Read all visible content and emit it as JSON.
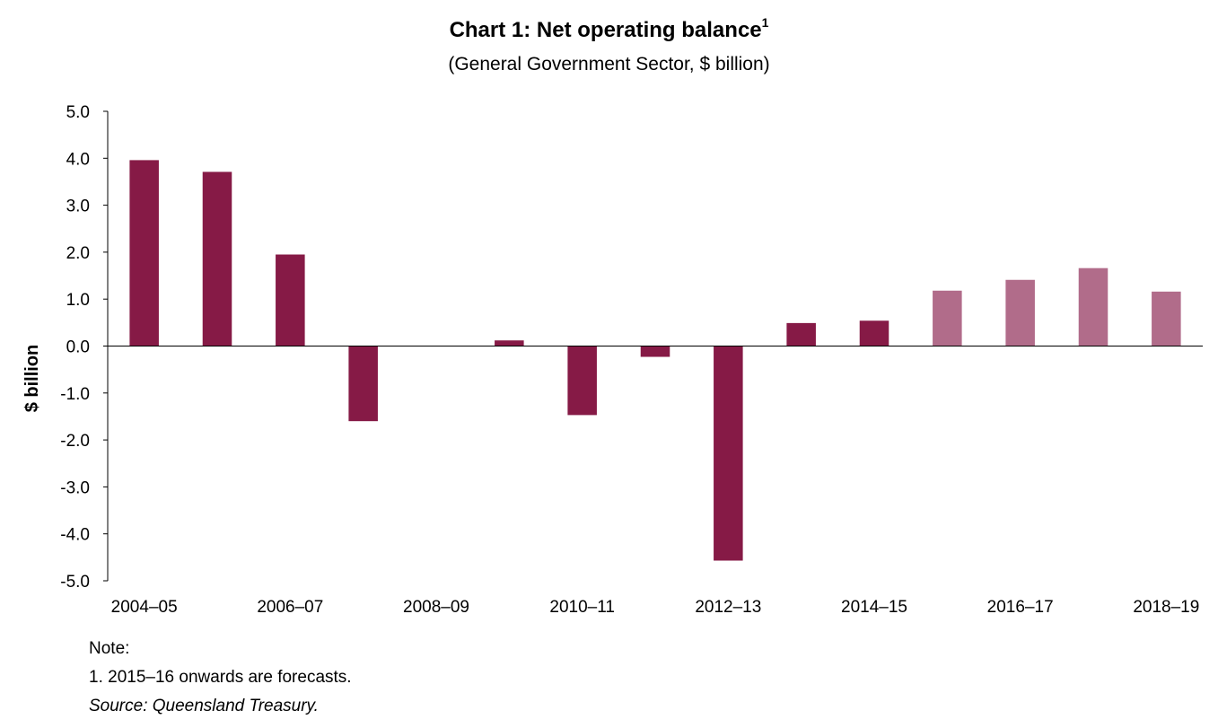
{
  "header": {
    "title": "Chart 1: Net operating balance",
    "title_sup": "1",
    "subtitle": "(General Government Sector, $ billion)"
  },
  "notes": {
    "label": "Note:",
    "note1": "1.  2015–16 onwards are forecasts.",
    "source": "Source: Queensland Treasury."
  },
  "colors": {
    "actual": "#861A46",
    "forecast": "#B16C8A"
  },
  "chart_data": {
    "type": "bar",
    "title": "Chart 1: Net operating balance",
    "subtitle": "(General Government Sector, $ billion)",
    "xlabel": "",
    "ylabel": "$ billion",
    "ylim": [
      -5.0,
      5.0
    ],
    "yticks": [
      "5.0",
      "4.0",
      "3.0",
      "2.0",
      "1.0",
      "0.0",
      "-1.0",
      "-2.0",
      "-3.0",
      "-4.0",
      "-5.0"
    ],
    "categories": [
      "2004–05",
      "2005–06",
      "2006–07",
      "2007–08",
      "2008–09",
      "2009–10",
      "2010–11",
      "2011–12",
      "2012–13",
      "2013–14",
      "2014–15",
      "2015–16",
      "2016–17",
      "2017–18",
      "2018–19"
    ],
    "xtick_labels": [
      "2004–05",
      "",
      "2006–07",
      "",
      "2008–09",
      "",
      "2010–11",
      "",
      "2012–13",
      "",
      "2014–15",
      "",
      "2016–17",
      "",
      "2018–19"
    ],
    "values": [
      3.96,
      3.71,
      1.95,
      -1.6,
      0.0,
      0.12,
      -1.47,
      -0.23,
      -4.57,
      0.49,
      0.54,
      1.18,
      1.41,
      1.66,
      1.16
    ],
    "forecast": [
      false,
      false,
      false,
      false,
      false,
      false,
      false,
      false,
      false,
      false,
      false,
      true,
      true,
      true,
      true
    ],
    "grid": false,
    "legend": "none"
  }
}
